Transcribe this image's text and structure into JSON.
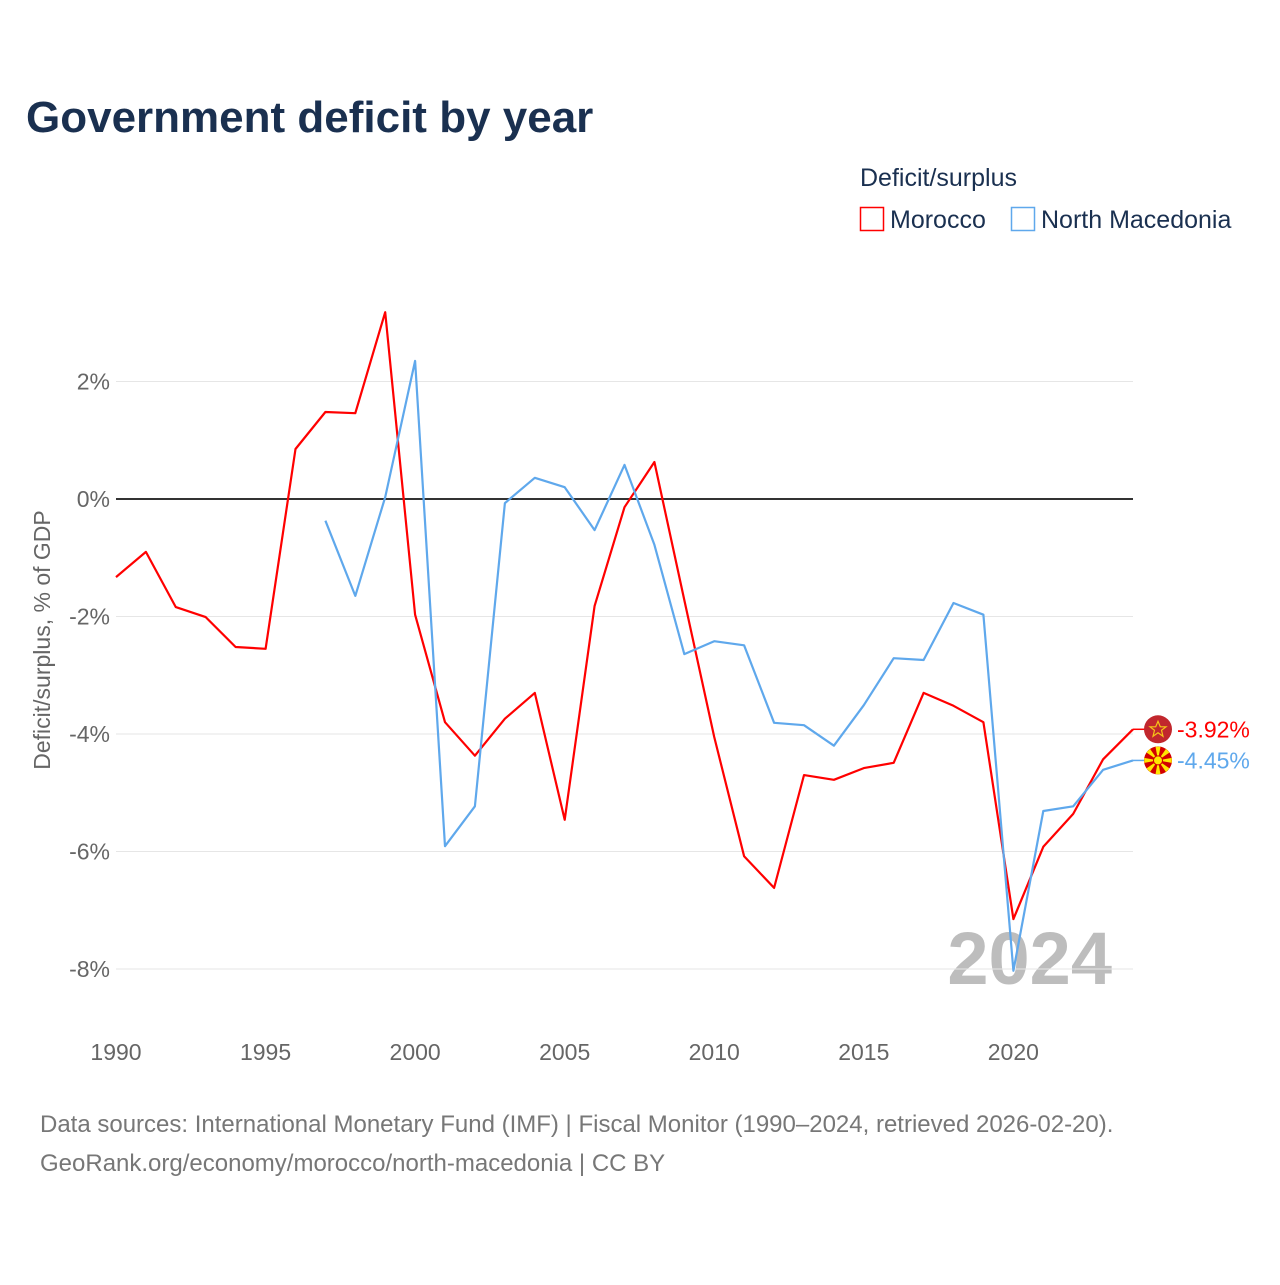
{
  "chart_data": {
    "type": "line",
    "title": "Government deficit by year",
    "ylabel": "Deficit/surplus, % of GDP",
    "xlabel": "",
    "xlim": [
      1990,
      2024
    ],
    "ylim": [
      -9,
      3.7
    ],
    "x_ticks": [
      1990,
      1995,
      2000,
      2005,
      2010,
      2015,
      2020
    ],
    "x_tick_labels": [
      "1990",
      "1995",
      "2000",
      "2005",
      "2010",
      "2015",
      "2020"
    ],
    "y_ticks": [
      2,
      0,
      -2,
      -4,
      -6,
      -8
    ],
    "y_tick_labels": [
      "2%",
      "0%",
      "-2%",
      "-4%",
      "-6%",
      "-8%"
    ],
    "grid": true,
    "legend": {
      "title": "Deficit/surplus",
      "placement": "top-right"
    },
    "year_watermark": "2024",
    "series": [
      {
        "name": "Morocco",
        "color": "#ff0000",
        "end_label": "-3.92%",
        "flag": "morocco-flag",
        "x": [
          1990,
          1991,
          1992,
          1993,
          1994,
          1995,
          1996,
          1997,
          1998,
          1999,
          2000,
          2001,
          2002,
          2003,
          2004,
          2005,
          2006,
          2007,
          2008,
          2009,
          2010,
          2011,
          2012,
          2013,
          2014,
          2015,
          2016,
          2017,
          2018,
          2019,
          2020,
          2021,
          2022,
          2023,
          2024
        ],
        "values": [
          -1.33,
          -0.9,
          -1.84,
          -2.01,
          -2.52,
          -2.55,
          0.85,
          1.48,
          1.46,
          3.18,
          -1.97,
          -3.8,
          -4.37,
          -3.74,
          -3.3,
          -5.46,
          -1.82,
          -0.14,
          0.63,
          -1.72,
          -4.05,
          -6.08,
          -6.62,
          -4.7,
          -4.78,
          -4.58,
          -4.49,
          -3.3,
          -3.52,
          -3.8,
          -7.15,
          -5.92,
          -5.36,
          -4.43,
          -3.92
        ]
      },
      {
        "name": "North Macedonia",
        "color": "#5fa8ec",
        "end_label": "-4.45%",
        "flag": "north-macedonia-flag",
        "x": [
          1997,
          1998,
          1999,
          2000,
          2001,
          2002,
          2003,
          2004,
          2005,
          2006,
          2007,
          2008,
          2009,
          2010,
          2011,
          2012,
          2013,
          2014,
          2015,
          2016,
          2017,
          2018,
          2019,
          2020,
          2021,
          2022,
          2023,
          2024
        ],
        "values": [
          -0.37,
          -1.65,
          0.03,
          2.35,
          -5.91,
          -5.23,
          -0.07,
          0.36,
          0.2,
          -0.53,
          0.58,
          -0.78,
          -2.64,
          -2.42,
          -2.49,
          -3.81,
          -3.85,
          -4.2,
          -3.51,
          -2.71,
          -2.74,
          -1.77,
          -1.97,
          -8.03,
          -5.31,
          -5.23,
          -4.61,
          -4.45
        ]
      }
    ]
  },
  "footer": {
    "line1": "Data sources: International Monetary Fund (IMF) | Fiscal Monitor (1990–2024, retrieved 2026-02-20).",
    "line2": "GeoRank.org/economy/morocco/north-macedonia | CC BY"
  }
}
